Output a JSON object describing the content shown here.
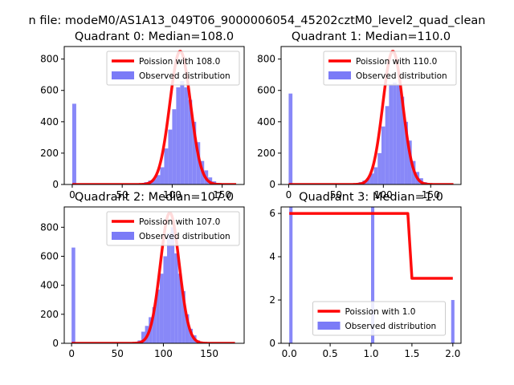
{
  "figure": {
    "suptitle": "n file: modeM0/AS1A13_049T06_9000006054_45202cztM0_level2_quad_clean"
  },
  "chart_data": [
    {
      "type": "histogram",
      "title": "Quadrant 0: Median=108.0",
      "xlim": [
        -8,
        172
      ],
      "ylim": [
        0,
        880
      ],
      "xticks": [
        0,
        50,
        100,
        150
      ],
      "yticks": [
        0,
        200,
        400,
        600,
        800
      ],
      "legend_position": "upper-right",
      "legend_entries": [
        "Poission with 108.0",
        "Observed distribution"
      ],
      "hist_color": "#7b7bf7",
      "line_color": "#ff0000",
      "bin_width": 4,
      "bins": [
        [
          0,
          515
        ],
        [
          68,
          5
        ],
        [
          72,
          15
        ],
        [
          76,
          25
        ],
        [
          80,
          35
        ],
        [
          84,
          60
        ],
        [
          88,
          110
        ],
        [
          92,
          230
        ],
        [
          96,
          350
        ],
        [
          100,
          480
        ],
        [
          104,
          620
        ],
        [
          108,
          660
        ],
        [
          112,
          620
        ],
        [
          116,
          540
        ],
        [
          120,
          400
        ],
        [
          124,
          270
        ],
        [
          128,
          150
        ],
        [
          132,
          90
        ],
        [
          136,
          45
        ],
        [
          140,
          20
        ],
        [
          144,
          10
        ],
        [
          148,
          5
        ]
      ],
      "curve": {
        "mean": 108,
        "peak": 850,
        "sigma": 10.4,
        "xmin": 0,
        "xmax": 164
      }
    },
    {
      "type": "histogram",
      "title": "Quadrant 1: Median=110.0",
      "xlim": [
        -8,
        182
      ],
      "ylim": [
        0,
        880
      ],
      "xticks": [
        0,
        50,
        100,
        150
      ],
      "yticks": [
        0,
        200,
        400,
        600,
        800
      ],
      "legend_position": "upper-right",
      "legend_entries": [
        "Poission with 110.0",
        "Observed distribution"
      ],
      "hist_color": "#7b7bf7",
      "line_color": "#ff0000",
      "bin_width": 4,
      "bins": [
        [
          0,
          580
        ],
        [
          70,
          5
        ],
        [
          74,
          15
        ],
        [
          78,
          25
        ],
        [
          82,
          40
        ],
        [
          86,
          70
        ],
        [
          90,
          110
        ],
        [
          94,
          200
        ],
        [
          98,
          370
        ],
        [
          102,
          500
        ],
        [
          106,
          640
        ],
        [
          110,
          650
        ],
        [
          114,
          640
        ],
        [
          118,
          560
        ],
        [
          122,
          400
        ],
        [
          126,
          280
        ],
        [
          130,
          150
        ],
        [
          134,
          80
        ],
        [
          138,
          40
        ],
        [
          142,
          15
        ],
        [
          146,
          5
        ]
      ],
      "curve": {
        "mean": 110,
        "peak": 850,
        "sigma": 10.5,
        "xmin": 0,
        "xmax": 174
      }
    },
    {
      "type": "histogram",
      "title": "Quadrant 2: Median=107.0",
      "xlim": [
        -8,
        188
      ],
      "ylim": [
        0,
        940
      ],
      "xticks": [
        0,
        50,
        100,
        150
      ],
      "yticks": [
        0,
        200,
        400,
        600,
        800
      ],
      "legend_position": "upper-right",
      "legend_entries": [
        "Poission with 107.0",
        "Observed distribution"
      ],
      "hist_color": "#7b7bf7",
      "line_color": "#ff0000",
      "bin_width": 4,
      "bins": [
        [
          0,
          660
        ],
        [
          72,
          20
        ],
        [
          76,
          80
        ],
        [
          80,
          120
        ],
        [
          84,
          180
        ],
        [
          88,
          250
        ],
        [
          92,
          370
        ],
        [
          96,
          480
        ],
        [
          100,
          600
        ],
        [
          104,
          760
        ],
        [
          108,
          800
        ],
        [
          112,
          620
        ],
        [
          116,
          480
        ],
        [
          120,
          360
        ],
        [
          124,
          200
        ],
        [
          128,
          100
        ],
        [
          132,
          55
        ],
        [
          136,
          20
        ],
        [
          140,
          8
        ]
      ],
      "curve": {
        "mean": 107,
        "peak": 900,
        "sigma": 10.3,
        "xmin": 0,
        "xmax": 178
      }
    },
    {
      "type": "histogram",
      "title": "Quadrant 3: Median=1.0",
      "xlim": [
        -0.1,
        2.1
      ],
      "ylim": [
        0,
        6.3
      ],
      "xticks": [
        0.0,
        0.5,
        1.0,
        1.5,
        2.0
      ],
      "yticks": [
        0,
        2,
        4,
        6
      ],
      "legend_position": "lower-center",
      "legend_entries": [
        "Poission with 1.0",
        "Observed distribution"
      ],
      "hist_color": "#7b7bf7",
      "line_color": "#ff0000",
      "bin_width": 0.04,
      "bins": [
        [
          0.0,
          6.3
        ],
        [
          1.0,
          6.3
        ],
        [
          1.98,
          2
        ]
      ],
      "step_curve": [
        [
          0.0,
          6
        ],
        [
          1.45,
          6
        ],
        [
          1.5,
          3
        ],
        [
          2.0,
          3
        ]
      ]
    }
  ]
}
